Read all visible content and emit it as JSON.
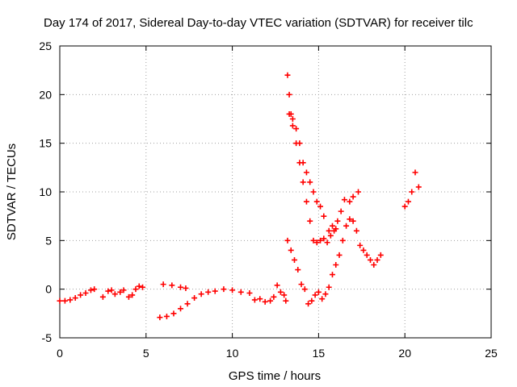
{
  "chart_data": {
    "type": "scatter",
    "title": "Day 174 of 2017, Sidereal Day-to-day VTEC variation (SDTVAR) for receiver tilc",
    "xlabel": "GPS time / hours",
    "ylabel": "SDTVAR / TECUs",
    "xlim": [
      0,
      25
    ],
    "ylim": [
      -5,
      25
    ],
    "xticks": [
      "0",
      "5",
      "10",
      "15",
      "20",
      "25"
    ],
    "yticks": [
      "-5",
      "0",
      "5",
      "10",
      "15",
      "20",
      "25"
    ],
    "grid": true,
    "marker": "+",
    "color": "#ff0000",
    "series": [
      {
        "points": [
          [
            0.0,
            -1.2
          ],
          [
            0.3,
            -1.2
          ],
          [
            0.6,
            -1.1
          ],
          [
            0.9,
            -0.9
          ],
          [
            1.2,
            -0.6
          ],
          [
            1.5,
            -0.4
          ],
          [
            1.8,
            -0.1
          ],
          [
            2.0,
            0.0
          ]
        ]
      },
      {
        "points": [
          [
            2.5,
            -0.8
          ],
          [
            2.8,
            -0.2
          ],
          [
            3.0,
            -0.1
          ],
          [
            3.2,
            -0.5
          ],
          [
            3.5,
            -0.3
          ],
          [
            3.7,
            -0.1
          ],
          [
            4.0,
            -0.8
          ],
          [
            4.2,
            -0.6
          ],
          [
            4.4,
            0.0
          ],
          [
            4.6,
            0.3
          ],
          [
            4.8,
            0.2
          ]
        ]
      },
      {
        "points": [
          [
            5.8,
            -2.9
          ],
          [
            6.2,
            -2.8
          ],
          [
            6.6,
            -2.5
          ],
          [
            7.0,
            -2.0
          ],
          [
            7.4,
            -1.5
          ],
          [
            7.8,
            -0.9
          ],
          [
            8.2,
            -0.5
          ],
          [
            8.6,
            -0.3
          ],
          [
            9.0,
            -0.2
          ],
          [
            9.5,
            0.0
          ],
          [
            10.0,
            -0.1
          ],
          [
            10.5,
            -0.3
          ],
          [
            11.0,
            -0.4
          ]
        ]
      },
      {
        "points": [
          [
            6.0,
            0.5
          ],
          [
            6.5,
            0.4
          ],
          [
            7.0,
            0.2
          ],
          [
            7.3,
            0.1
          ]
        ]
      },
      {
        "points": [
          [
            11.3,
            -1.1
          ],
          [
            11.6,
            -1.0
          ],
          [
            11.9,
            -1.3
          ],
          [
            12.2,
            -1.2
          ]
        ]
      },
      {
        "points": [
          [
            12.4,
            -0.8
          ],
          [
            12.6,
            0.4
          ],
          [
            12.8,
            -0.3
          ],
          [
            13.0,
            -0.6
          ],
          [
            13.1,
            -1.2
          ]
        ]
      },
      {
        "points": [
          [
            13.2,
            22.0
          ],
          [
            13.3,
            20.0
          ],
          [
            13.4,
            18.0
          ],
          [
            13.5,
            16.8
          ],
          [
            13.7,
            15.0
          ],
          [
            13.9,
            13.0
          ],
          [
            14.1,
            11.0
          ],
          [
            14.3,
            9.0
          ],
          [
            14.5,
            7.0
          ],
          [
            14.7,
            5.0
          ],
          [
            14.9,
            4.8
          ],
          [
            15.1,
            5.0
          ],
          [
            15.3,
            5.2
          ],
          [
            15.5,
            4.8
          ],
          [
            15.7,
            5.5
          ],
          [
            15.9,
            6.0
          ],
          [
            16.1,
            7.0
          ],
          [
            16.3,
            8.0
          ],
          [
            16.5,
            9.2
          ],
          [
            16.8,
            9.0
          ],
          [
            17.0,
            9.5
          ],
          [
            17.3,
            10.0
          ]
        ]
      },
      {
        "points": [
          [
            13.3,
            18.0
          ],
          [
            13.5,
            17.5
          ],
          [
            13.7,
            16.5
          ],
          [
            13.9,
            15.0
          ],
          [
            14.1,
            13.0
          ],
          [
            14.3,
            12.0
          ],
          [
            14.5,
            11.0
          ],
          [
            14.7,
            10.0
          ],
          [
            14.9,
            9.0
          ],
          [
            15.1,
            8.5
          ],
          [
            15.3,
            7.5
          ]
        ]
      },
      {
        "points": [
          [
            13.2,
            5.0
          ],
          [
            13.4,
            4.0
          ],
          [
            13.6,
            3.0
          ],
          [
            13.8,
            2.0
          ],
          [
            14.0,
            0.5
          ],
          [
            14.2,
            0.0
          ],
          [
            14.4,
            -1.5
          ],
          [
            14.6,
            -1.2
          ],
          [
            14.8,
            -0.6
          ],
          [
            15.0,
            -0.3
          ],
          [
            15.2,
            -1.0
          ],
          [
            15.4,
            -0.5
          ],
          [
            15.6,
            0.2
          ],
          [
            15.8,
            1.5
          ],
          [
            16.0,
            2.5
          ],
          [
            16.2,
            3.5
          ],
          [
            16.4,
            5.0
          ],
          [
            16.6,
            6.5
          ],
          [
            16.8,
            7.2
          ],
          [
            17.0,
            7.0
          ],
          [
            17.2,
            6.0
          ],
          [
            17.4,
            4.5
          ],
          [
            17.6,
            4.0
          ],
          [
            17.8,
            3.5
          ],
          [
            18.0,
            3.0
          ],
          [
            18.2,
            2.5
          ],
          [
            18.4,
            3.0
          ],
          [
            18.6,
            3.5
          ]
        ]
      },
      {
        "points": [
          [
            15.6,
            6.0
          ],
          [
            15.8,
            6.5
          ],
          [
            16.0,
            6.2
          ]
        ]
      },
      {
        "points": [
          [
            20.0,
            8.5
          ],
          [
            20.2,
            9.0
          ],
          [
            20.4,
            10.0
          ],
          [
            20.6,
            12.0
          ],
          [
            20.8,
            10.5
          ]
        ]
      }
    ]
  }
}
